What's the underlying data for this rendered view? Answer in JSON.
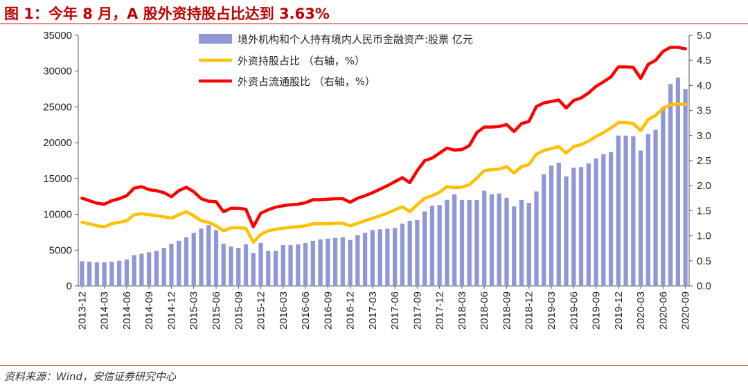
{
  "header": {
    "title": "图 1：今年 8 月，A 股外资持股占比达到 3.63%"
  },
  "footer": {
    "source": "资料来源：Wind，安信证券研究中心"
  },
  "chart_data": {
    "type": "bar+line",
    "colors": {
      "bars": "#8f97d6",
      "line_share": "#ffc000",
      "line_float": "#ff0000"
    },
    "categories": [
      "2013-12",
      "2014-01",
      "2014-02",
      "2014-03",
      "2014-04",
      "2014-05",
      "2014-06",
      "2014-07",
      "2014-08",
      "2014-09",
      "2014-10",
      "2014-11",
      "2014-12",
      "2015-01",
      "2015-02",
      "2015-03",
      "2015-04",
      "2015-05",
      "2015-06",
      "2015-07",
      "2015-08",
      "2015-09",
      "2015-10",
      "2015-11",
      "2015-12",
      "2016-01",
      "2016-02",
      "2016-03",
      "2016-04",
      "2016-05",
      "2016-06",
      "2016-07",
      "2016-08",
      "2016-09",
      "2016-10",
      "2016-11",
      "2016-12",
      "2017-01",
      "2017-02",
      "2017-03",
      "2017-04",
      "2017-05",
      "2017-06",
      "2017-07",
      "2017-08",
      "2017-09",
      "2017-10",
      "2017-11",
      "2017-12",
      "2018-01",
      "2018-02",
      "2018-03",
      "2018-04",
      "2018-05",
      "2018-06",
      "2018-07",
      "2018-08",
      "2018-09",
      "2018-10",
      "2018-11",
      "2018-12",
      "2019-01",
      "2019-02",
      "2019-03",
      "2019-04",
      "2019-05",
      "2019-06",
      "2019-07",
      "2019-08",
      "2019-09",
      "2019-10",
      "2019-11",
      "2019-12",
      "2020-01",
      "2020-02",
      "2020-03",
      "2020-04",
      "2020-05",
      "2020-06",
      "2020-07",
      "2020-08",
      "2020-09"
    ],
    "x_tick_labels": [
      "2013-12",
      "2014-03",
      "2014-06",
      "2014-09",
      "2014-12",
      "2015-03",
      "2015-06",
      "2015-09",
      "2015-12",
      "2016-03",
      "2016-06",
      "2016-09",
      "2016-12",
      "2017-03",
      "2017-06",
      "2017-09",
      "2017-12",
      "2018-03",
      "2018-06",
      "2018-09",
      "2018-12",
      "2019-03",
      "2019-06",
      "2019-09",
      "2019-12",
      "2020-03",
      "2020-06",
      "2020-09"
    ],
    "y_left": {
      "range": [
        0,
        35000
      ],
      "ticks": [
        "0",
        "5000",
        "10000",
        "15000",
        "20000",
        "25000",
        "30000",
        "35000"
      ]
    },
    "y_right": {
      "range": [
        0,
        5.0
      ],
      "ticks": [
        "0.0",
        "0.5",
        "1.0",
        "1.5",
        "2.0",
        "2.5",
        "3.0",
        "3.5",
        "4.0",
        "4.5",
        "5.0"
      ]
    },
    "grid": false,
    "legend_position": "top-center",
    "series": [
      {
        "name": "境外机构和个人持有境内人民币金融资产:股票 亿元",
        "type": "bar",
        "axis": "left",
        "values": [
          3450,
          3400,
          3300,
          3300,
          3400,
          3500,
          3700,
          4300,
          4500,
          4700,
          4900,
          5300,
          5900,
          6300,
          6800,
          7400,
          8000,
          8500,
          7800,
          5900,
          5500,
          5300,
          5800,
          4600,
          6000,
          4900,
          4900,
          5700,
          5700,
          5800,
          6000,
          6300,
          6500,
          6600,
          6700,
          6800,
          6400,
          7100,
          7400,
          7800,
          7900,
          8000,
          8100,
          8700,
          9100,
          9200,
          10400,
          11200,
          11300,
          12000,
          12800,
          12000,
          12000,
          12000,
          13300,
          12800,
          12900,
          12300,
          11100,
          12000,
          11600,
          13200,
          15600,
          16800,
          17200,
          15300,
          16500,
          16600,
          17100,
          17800,
          18400,
          18700,
          21000,
          21000,
          20900,
          18900,
          21200,
          21800,
          24900,
          28200,
          29100,
          27500
        ]
      },
      {
        "name": "外资持股占比 （右轴，%）",
        "type": "line",
        "axis": "right",
        "values": [
          1.27,
          1.24,
          1.2,
          1.18,
          1.24,
          1.27,
          1.3,
          1.42,
          1.44,
          1.42,
          1.4,
          1.38,
          1.35,
          1.42,
          1.48,
          1.4,
          1.3,
          1.27,
          1.2,
          1.1,
          1.16,
          1.16,
          1.15,
          0.87,
          1.03,
          1.1,
          1.13,
          1.15,
          1.17,
          1.18,
          1.2,
          1.24,
          1.24,
          1.24,
          1.25,
          1.25,
          1.2,
          1.25,
          1.3,
          1.35,
          1.4,
          1.45,
          1.52,
          1.58,
          1.48,
          1.62,
          1.75,
          1.8,
          1.87,
          1.98,
          1.96,
          1.97,
          2.02,
          2.15,
          2.3,
          2.32,
          2.33,
          2.38,
          2.25,
          2.38,
          2.42,
          2.63,
          2.7,
          2.74,
          2.78,
          2.65,
          2.78,
          2.82,
          2.89,
          2.98,
          3.06,
          3.15,
          3.26,
          3.26,
          3.24,
          3.1,
          3.32,
          3.4,
          3.55,
          3.61,
          3.63,
          3.62
        ]
      },
      {
        "name": "外资占流通股比 （右轴，%）",
        "type": "line",
        "axis": "right",
        "values": [
          1.75,
          1.7,
          1.65,
          1.63,
          1.7,
          1.74,
          1.8,
          1.95,
          1.98,
          1.92,
          1.9,
          1.86,
          1.78,
          1.9,
          1.97,
          1.88,
          1.74,
          1.69,
          1.68,
          1.48,
          1.55,
          1.55,
          1.53,
          1.18,
          1.45,
          1.52,
          1.57,
          1.6,
          1.62,
          1.63,
          1.66,
          1.72,
          1.72,
          1.73,
          1.74,
          1.74,
          1.67,
          1.75,
          1.8,
          1.86,
          1.93,
          2.0,
          2.08,
          2.16,
          2.06,
          2.3,
          2.5,
          2.55,
          2.65,
          2.75,
          2.71,
          2.72,
          2.8,
          3.06,
          3.17,
          3.17,
          3.18,
          3.22,
          3.08,
          3.24,
          3.28,
          3.58,
          3.65,
          3.68,
          3.71,
          3.55,
          3.7,
          3.75,
          3.85,
          3.98,
          4.07,
          4.17,
          4.37,
          4.37,
          4.36,
          4.14,
          4.42,
          4.5,
          4.68,
          4.76,
          4.76,
          4.73
        ]
      }
    ]
  }
}
